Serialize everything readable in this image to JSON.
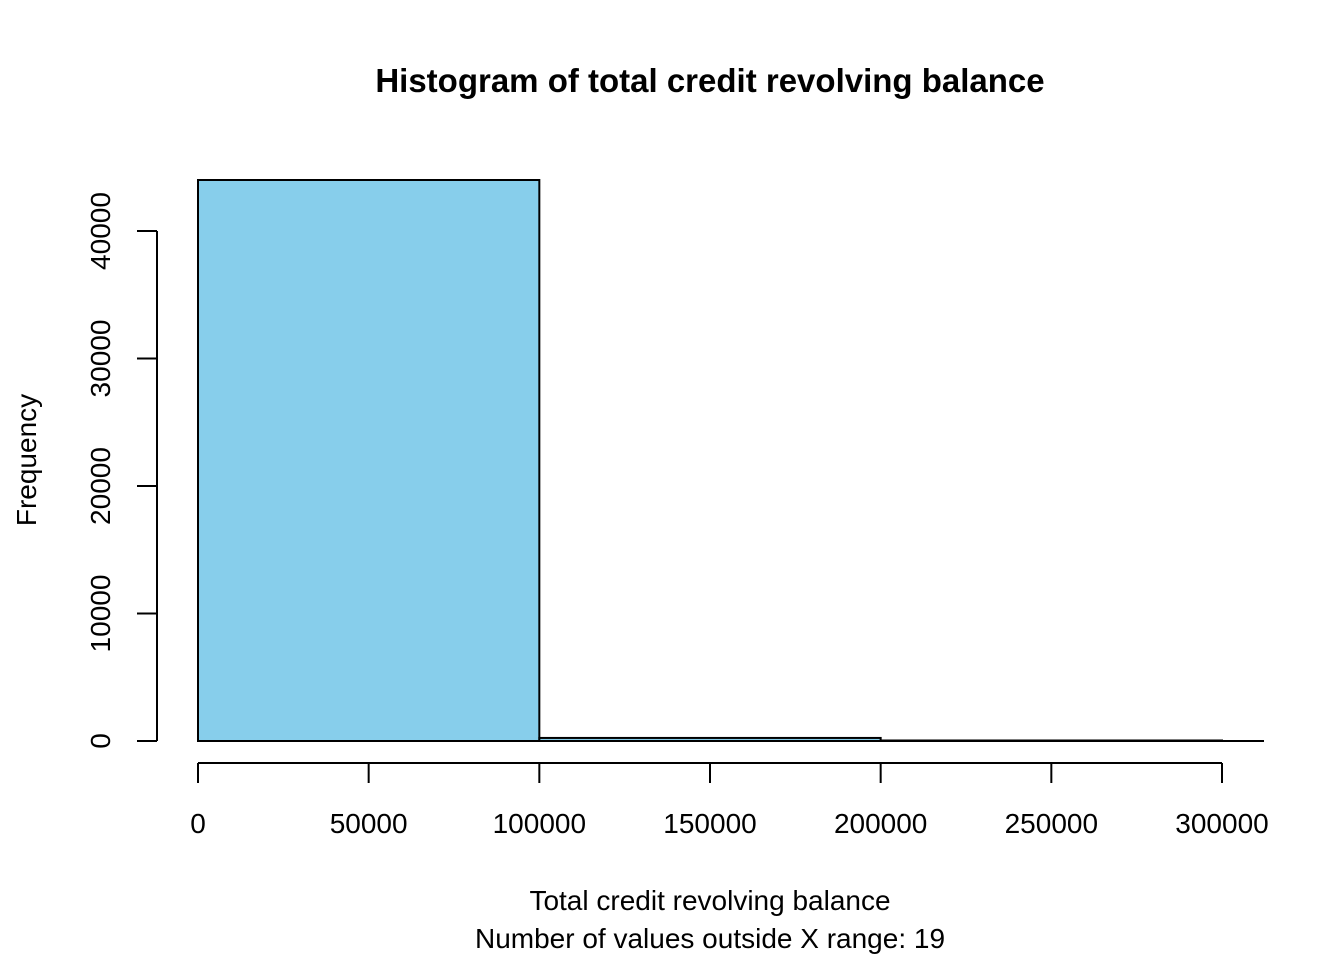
{
  "chart_data": {
    "type": "bar",
    "title": "Histogram of total credit revolving balance",
    "xlabel": "Total credit revolving balance",
    "subtitle": "Number of values outside X range: 19",
    "ylabel": "Frequency",
    "bins": [
      {
        "start": 0,
        "end": 100000,
        "count": 44000
      },
      {
        "start": 100000,
        "end": 200000,
        "count": 240
      },
      {
        "start": 200000,
        "end": 300000,
        "count": 40
      }
    ],
    "xlim": [
      0,
      300000
    ],
    "ylim": [
      0,
      44000
    ],
    "x_ticks": [
      0,
      50000,
      100000,
      150000,
      200000,
      250000,
      300000
    ],
    "x_tick_labels": [
      "0",
      "50000",
      "100000",
      "150000",
      "200000",
      "250000",
      "300000"
    ],
    "y_ticks": [
      0,
      10000,
      20000,
      30000,
      40000
    ],
    "y_tick_labels": [
      "0",
      "10000",
      "20000",
      "30000",
      "40000"
    ],
    "grid": false,
    "legend": "none",
    "bar_color": "#87CEEB",
    "border_color": "#000000"
  }
}
